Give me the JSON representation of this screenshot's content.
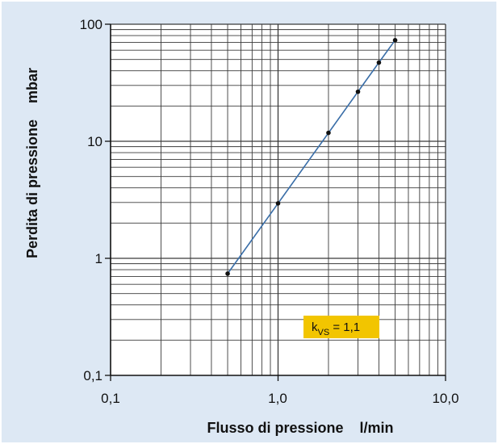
{
  "chart_data": {
    "type": "line",
    "xscale": "log",
    "yscale": "log",
    "xlim": [
      0.1,
      10
    ],
    "ylim": [
      0.1,
      100
    ],
    "grid": true,
    "xlabel": "Flusso di pressione    l/min",
    "ylabel": "Perdita di pressione    mbar",
    "x_ticks": [
      "0,1",
      "1,0",
      "10,0"
    ],
    "y_ticks": [
      "100",
      "10",
      "1",
      "0,1"
    ],
    "series": [
      {
        "color": "#3a6ea8",
        "points": [
          {
            "x": 0.5,
            "y": 0.74
          },
          {
            "x": 1.0,
            "y": 2.95
          },
          {
            "x": 2.0,
            "y": 11.8
          },
          {
            "x": 3.0,
            "y": 26.5
          },
          {
            "x": 4.0,
            "y": 47
          },
          {
            "x": 5.0,
            "y": 73
          }
        ]
      }
    ],
    "annotation": {
      "main": "k",
      "sub": "VS",
      "rest": " = 1,1",
      "background": "#f2c500"
    }
  }
}
